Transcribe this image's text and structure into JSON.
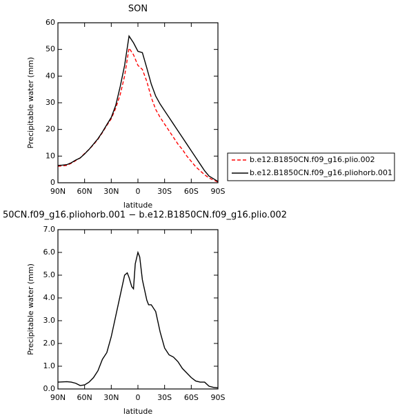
{
  "chart_data": [
    {
      "type": "line",
      "title": "SON",
      "xlabel": "latitude",
      "ylabel": "Precipitable water (mm)",
      "x": [
        90,
        85,
        80,
        75,
        70,
        65,
        60,
        55,
        50,
        45,
        40,
        35,
        30,
        25,
        20,
        15,
        10,
        5,
        0,
        -5,
        -10,
        -15,
        -20,
        -25,
        -30,
        -35,
        -40,
        -45,
        -50,
        -55,
        -60,
        -65,
        -70,
        -75,
        -80,
        -85,
        -90
      ],
      "xlim": [
        90,
        -90
      ],
      "xticks": [
        {
          "value": 90,
          "label": "90N"
        },
        {
          "value": 60,
          "label": "60N"
        },
        {
          "value": 30,
          "label": "30N"
        },
        0,
        {
          "value": -30,
          "label": "30S"
        },
        {
          "value": -60,
          "label": "60S"
        },
        {
          "value": -90,
          "label": "90S"
        }
      ],
      "ylim": [
        0,
        60
      ],
      "yticks": [
        0,
        10,
        20,
        30,
        40,
        50,
        60
      ],
      "legend": "right",
      "series": [
        {
          "name": "b.e12.B1850CN.f09_g16.plio.002",
          "color": "#ff0000",
          "style": "dashed",
          "values": [
            6.2,
            6.3,
            6.5,
            7.3,
            8.3,
            9.3,
            11,
            12.5,
            14.3,
            16.3,
            18.8,
            21.5,
            24,
            28,
            33,
            40,
            50.5,
            48,
            44,
            42.5,
            38,
            32,
            27.5,
            24.5,
            22,
            19.5,
            17,
            14.5,
            12.5,
            10,
            8,
            6,
            4.5,
            3,
            1.8,
            1,
            0.3
          ]
        },
        {
          "name": "b.e12.B1850CN.f09_g16.pliohorb.001",
          "color": "#000000",
          "style": "solid",
          "values": [
            6.5,
            6.6,
            6.8,
            7.5,
            8.5,
            9.3,
            10.8,
            12.5,
            14.5,
            16.5,
            19,
            21.8,
            24.5,
            29,
            36,
            44,
            55,
            52.5,
            49.3,
            48.8,
            43,
            37,
            32.5,
            29.5,
            27,
            24.5,
            22,
            19.5,
            17,
            14.5,
            12,
            9.5,
            7,
            4.5,
            2.5,
            1.5,
            0.5
          ]
        }
      ]
    },
    {
      "type": "line",
      "title": "50CN.f09_g16.pliohorb.001 − b.e12.B1850CN.f09_g16.plio.002",
      "xlabel": "latitude",
      "ylabel": "Precipitable water (mm)",
      "x": [
        90,
        80,
        75,
        70,
        65,
        60,
        55,
        50,
        45,
        40,
        35,
        30,
        25,
        20,
        15,
        12,
        10,
        7,
        5,
        3,
        0,
        -2,
        -5,
        -10,
        -12,
        -15,
        -20,
        -25,
        -30,
        -35,
        -40,
        -45,
        -50,
        -55,
        -60,
        -65,
        -70,
        -75,
        -80,
        -85,
        -90
      ],
      "xlim": [
        90,
        -90
      ],
      "xticks": [
        {
          "value": 90,
          "label": "90N"
        },
        {
          "value": 60,
          "label": "60N"
        },
        {
          "value": 30,
          "label": "30N"
        },
        0,
        {
          "value": -30,
          "label": "30S"
        },
        {
          "value": -60,
          "label": "60S"
        },
        {
          "value": -90,
          "label": "90S"
        }
      ],
      "ylim": [
        0,
        7
      ],
      "yticks": [
        {
          "value": 0,
          "label": "0.0"
        },
        {
          "value": 1,
          "label": "1.0"
        },
        {
          "value": 2,
          "label": "2.0"
        },
        {
          "value": 3,
          "label": "3.0"
        },
        {
          "value": 4,
          "label": "4.0"
        },
        {
          "value": 5,
          "label": "5.0"
        },
        {
          "value": 6,
          "label": "6.0"
        },
        {
          "value": 7,
          "label": "7.0"
        }
      ],
      "series": [
        {
          "color": "#000000",
          "style": "solid",
          "values": [
            0.3,
            0.32,
            0.3,
            0.25,
            0.15,
            0.18,
            0.3,
            0.5,
            0.8,
            1.3,
            1.6,
            2.3,
            3.2,
            4.1,
            5.0,
            5.1,
            4.9,
            4.5,
            4.4,
            5.5,
            6.0,
            5.8,
            4.8,
            3.9,
            3.7,
            3.7,
            3.4,
            2.5,
            1.8,
            1.5,
            1.4,
            1.2,
            0.9,
            0.7,
            0.5,
            0.35,
            0.3,
            0.3,
            0.12,
            0.07,
            0.05
          ]
        }
      ]
    }
  ]
}
